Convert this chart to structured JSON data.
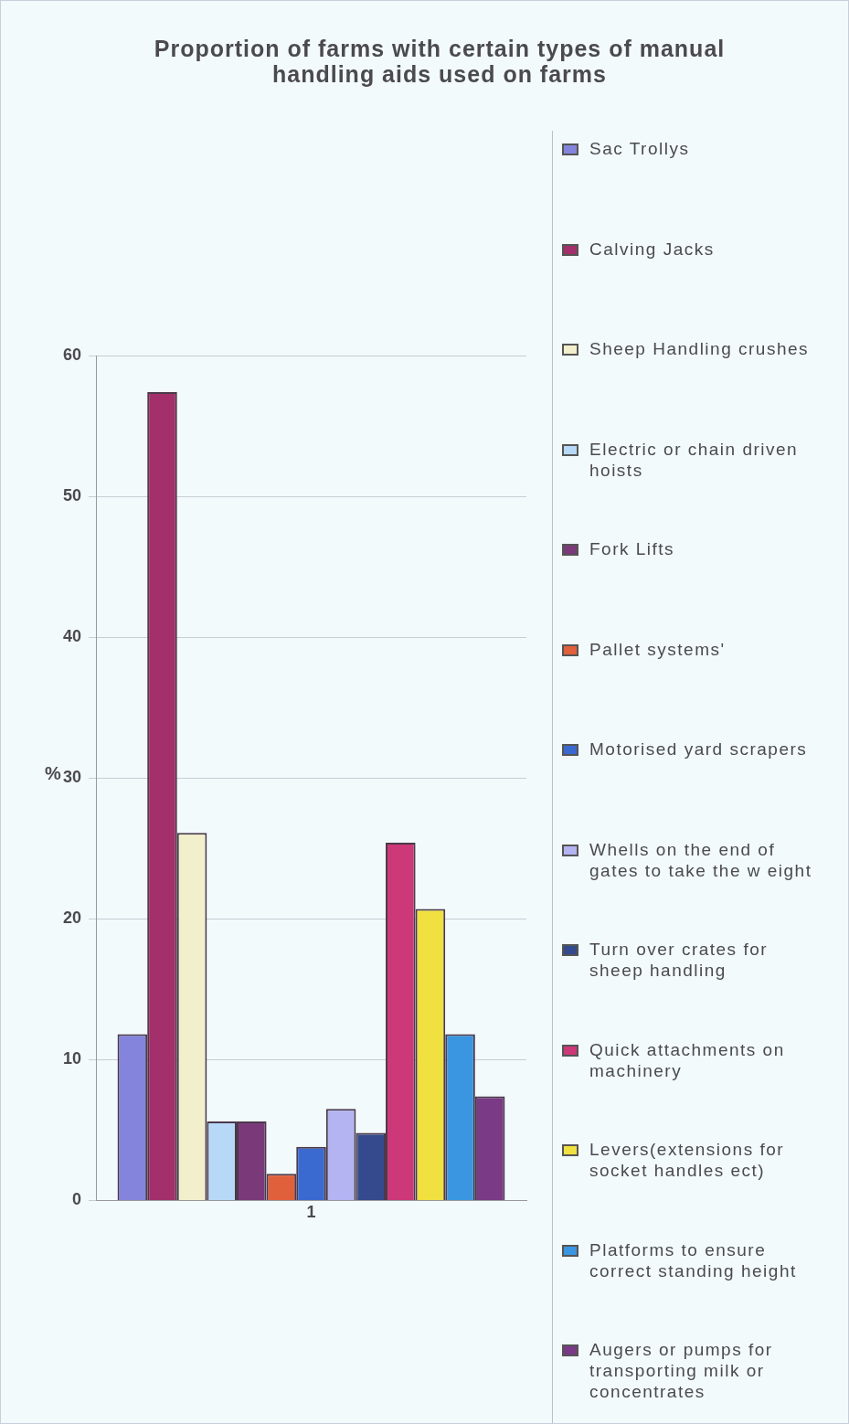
{
  "chart_data": {
    "type": "bar",
    "title": "Proportion of farms with certain types of manual handling aids used on farms",
    "ylabel": "%",
    "categories": [
      "1"
    ],
    "series": [
      {
        "name": "Sac Trollys",
        "color": "#8484dc",
        "values": [
          11.8
        ]
      },
      {
        "name": "Calving Jacks",
        "color": "#a3306a",
        "values": [
          57.4
        ]
      },
      {
        "name": "Sheep Handling crushes",
        "color": "#f2f0cc",
        "values": [
          26.1
        ]
      },
      {
        "name": "Electric or chain driven hoists",
        "color": "#b8d8f8",
        "values": [
          5.6
        ]
      },
      {
        "name": "Fork Lifts",
        "color": "#7a3a7a",
        "values": [
          5.6
        ]
      },
      {
        "name": "Pallet systems'",
        "color": "#e0603c",
        "values": [
          1.9
        ]
      },
      {
        "name": "Motorised yard scrapers",
        "color": "#3a6ad0",
        "values": [
          3.8
        ]
      },
      {
        "name": "Whells on the end of gates to take the w eight",
        "color": "#b4b4f2",
        "values": [
          6.5
        ]
      },
      {
        "name": "Turn over crates for sheep handling",
        "color": "#344a8c",
        "values": [
          4.8
        ]
      },
      {
        "name": "Quick attachments on machinery",
        "color": "#cc3878",
        "values": [
          25.4
        ]
      },
      {
        "name": "Levers(extensions for socket handles ect)",
        "color": "#f0e040",
        "values": [
          20.7
        ]
      },
      {
        "name": "Platforms to ensure correct standing height",
        "color": "#3a96e0",
        "values": [
          11.8
        ]
      },
      {
        "name": "Augers or pumps for transporting milk or concentrates",
        "color": "#7a3a86",
        "values": [
          7.4
        ]
      }
    ],
    "ylim": [
      0,
      60
    ],
    "yticks": [
      0,
      10,
      20,
      30,
      40,
      50,
      60
    ],
    "grid": "y",
    "legend": "right"
  }
}
